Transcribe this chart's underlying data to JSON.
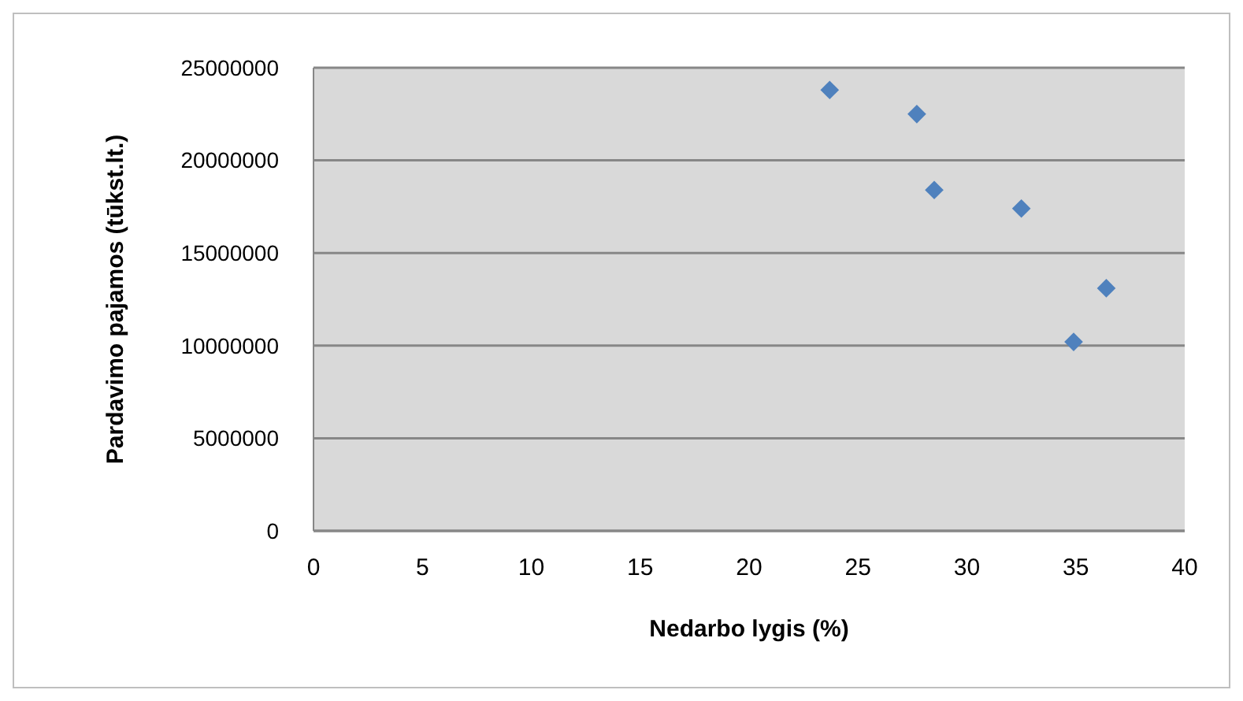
{
  "chart_data": {
    "type": "scatter",
    "xlabel": "Nedarbo lygis (%)",
    "ylabel": "Pardavimo pajamos (tūkst.lt.)",
    "x": [
      23.7,
      27.7,
      28.5,
      32.5,
      36.4,
      34.9
    ],
    "series": [
      {
        "color": "#4f81bd",
        "values": [
          23800000,
          22500000,
          18400000,
          17400000,
          13100000,
          10200000
        ]
      }
    ],
    "xlim": [
      0,
      40
    ],
    "xticks": [
      0,
      5,
      10,
      15,
      20,
      25,
      30,
      35,
      40
    ],
    "ylim": [
      0,
      25000000
    ],
    "yticks": [
      0,
      5000000,
      10000000,
      15000000,
      20000000,
      25000000
    ],
    "grid": "y",
    "marker": "diamond"
  }
}
